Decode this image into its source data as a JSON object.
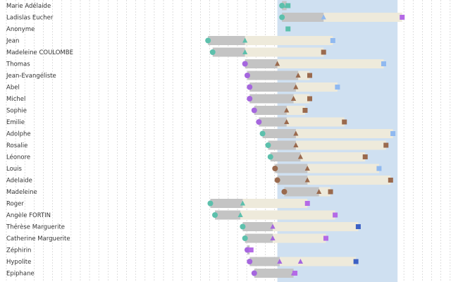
{
  "chart_data": {
    "type": "timeline",
    "x_axis": {
      "units": "relative time index",
      "range": [
        0,
        100
      ],
      "ticks_every": 2,
      "grid": true,
      "tick_labels": "none"
    },
    "highlight_band": {
      "from": 60,
      "to": 86,
      "color": "#cfe0f1"
    },
    "colors": {
      "gray_bar": "#c4c4c4",
      "beige_bar": "#eeeadb",
      "teal": "#5cc0ac",
      "purple": "#a566de",
      "brown": "#9a6a4e",
      "light_blue": "#90b9f0",
      "dark_blue": "#3d61c4",
      "magenta": "#b46ae6",
      "grid": "#d0d0d0"
    },
    "rows": [
      {
        "name": "Marie Adélaide",
        "gray": [
          61,
          62
        ],
        "beige": [
          62,
          62
        ],
        "start_marker": "circle",
        "start_color": "teal",
        "mid_marker": "triangle",
        "mid_color": "teal",
        "end_marker": "square",
        "end_color": "teal",
        "band_top_cut": true
      },
      {
        "name": "Ladislas Eucher",
        "gray": [
          61,
          70
        ],
        "beige": [
          70,
          87
        ],
        "start_marker": "circle",
        "start_color": "teal",
        "mid_marker": "triangle",
        "mid_color": "light_blue",
        "end_marker": "square",
        "end_color": "magenta"
      },
      {
        "name": "Anonyme",
        "gray": [
          62,
          62
        ],
        "beige": [
          62,
          62
        ],
        "start_marker": "",
        "start_color": "",
        "mid_marker": "",
        "mid_color": "",
        "end_marker": "square",
        "end_color": "teal"
      },
      {
        "name": "Jean",
        "gray": [
          45,
          53
        ],
        "beige": [
          53,
          72
        ],
        "start_marker": "circle",
        "start_color": "teal",
        "mid_marker": "triangle",
        "mid_color": "teal",
        "end_marker": "square",
        "end_color": "light_blue"
      },
      {
        "name": "Madeleine COULOMBE",
        "gray": [
          46,
          53
        ],
        "beige": [
          53,
          70
        ],
        "start_marker": "circle",
        "start_color": "teal",
        "mid_marker": "triangle",
        "mid_color": "teal",
        "end_marker": "square",
        "end_color": "brown"
      },
      {
        "name": "Thomas",
        "gray": [
          53,
          60
        ],
        "beige": [
          60,
          83
        ],
        "start_marker": "circle",
        "start_color": "purple",
        "mid_marker": "triangle",
        "mid_color": "brown",
        "end_marker": "square",
        "end_color": "light_blue"
      },
      {
        "name": "Jean-Evangéliste",
        "gray": [
          53.5,
          64.5
        ],
        "beige": [
          64.5,
          67
        ],
        "start_marker": "circle",
        "start_color": "purple",
        "mid_marker": "triangle",
        "mid_color": "brown",
        "end_marker": "square",
        "end_color": "brown"
      },
      {
        "name": "Abel",
        "gray": [
          54,
          64
        ],
        "beige": [
          64,
          73
        ],
        "start_marker": "circle",
        "start_color": "purple",
        "mid_marker": "triangle",
        "mid_color": "brown",
        "end_marker": "square",
        "end_color": "light_blue"
      },
      {
        "name": "Michel",
        "gray": [
          54,
          63.5
        ],
        "beige": [
          63.5,
          67
        ],
        "start_marker": "circle",
        "start_color": "purple",
        "mid_marker": "triangle",
        "mid_color": "brown",
        "end_marker": "square",
        "end_color": "brown"
      },
      {
        "name": "Sophie",
        "gray": [
          55,
          62
        ],
        "beige": [
          62,
          66
        ],
        "start_marker": "circle",
        "start_color": "purple",
        "mid_marker": "triangle",
        "mid_color": "brown",
        "end_marker": "square",
        "end_color": "brown"
      },
      {
        "name": "Emilie",
        "gray": [
          56,
          62
        ],
        "beige": [
          62,
          74.5
        ],
        "start_marker": "circle",
        "start_color": "purple",
        "mid_marker": "triangle",
        "mid_color": "brown",
        "end_marker": "square",
        "end_color": "brown"
      },
      {
        "name": "Adolphe",
        "gray": [
          56.8,
          64
        ],
        "beige": [
          64,
          85
        ],
        "start_marker": "circle",
        "start_color": "teal",
        "mid_marker": "triangle",
        "mid_color": "brown",
        "end_marker": "square",
        "end_color": "light_blue"
      },
      {
        "name": "Rosalie",
        "gray": [
          58,
          64
        ],
        "beige": [
          64,
          83.5
        ],
        "start_marker": "circle",
        "start_color": "teal",
        "mid_marker": "triangle",
        "mid_color": "brown",
        "end_marker": "square",
        "end_color": "brown"
      },
      {
        "name": "Léonore",
        "gray": [
          58.5,
          65
        ],
        "beige": [
          65,
          79
        ],
        "start_marker": "circle",
        "start_color": "teal",
        "mid_marker": "triangle",
        "mid_color": "brown",
        "end_marker": "square",
        "end_color": "brown"
      },
      {
        "name": "Louis",
        "gray": [
          59.5,
          66.5
        ],
        "beige": [
          66.5,
          82
        ],
        "start_marker": "circle",
        "start_color": "brown",
        "mid_marker": "triangle",
        "mid_color": "brown",
        "end_marker": "square",
        "end_color": "light_blue"
      },
      {
        "name": "Adelaide",
        "gray": [
          60,
          66.5
        ],
        "beige": [
          66.5,
          84.5
        ],
        "start_marker": "circle",
        "start_color": "brown",
        "mid_marker": "triangle",
        "mid_color": "brown",
        "end_marker": "square",
        "end_color": "brown"
      },
      {
        "name": "Madeleine",
        "gray": [
          61.5,
          69
        ],
        "beige": [
          69,
          71.5
        ],
        "start_marker": "circle",
        "start_color": "brown",
        "mid_marker": "triangle",
        "mid_color": "brown",
        "end_marker": "square",
        "end_color": "brown"
      },
      {
        "name": "Roger",
        "gray": [
          45.5,
          52.5
        ],
        "beige": [
          52.5,
          66.5
        ],
        "start_marker": "circle",
        "start_color": "teal",
        "mid_marker": "triangle",
        "mid_color": "teal",
        "end_marker": "square",
        "end_color": "magenta"
      },
      {
        "name": "Angèle FORTIN",
        "gray": [
          46.5,
          52
        ],
        "beige": [
          52,
          72.5
        ],
        "start_marker": "circle",
        "start_color": "teal",
        "mid_marker": "triangle",
        "mid_color": "teal",
        "end_marker": "square",
        "end_color": "magenta"
      },
      {
        "name": "Thérèse Marguerite",
        "gray": [
          52.5,
          59
        ],
        "beige": [
          59,
          77.5
        ],
        "start_marker": "circle",
        "start_color": "teal",
        "mid_marker": "triangle",
        "mid_color": "purple",
        "end_marker": "square",
        "end_color": "dark_blue"
      },
      {
        "name": "Catherine Marguerite",
        "gray": [
          53,
          59
        ],
        "beige": [
          59,
          70.5
        ],
        "start_marker": "circle",
        "start_color": "teal",
        "mid_marker": "triangle",
        "mid_color": "purple",
        "end_marker": "square",
        "end_color": "magenta"
      },
      {
        "name": "Zéphirin",
        "gray": [
          53.5,
          54
        ],
        "beige": [
          54,
          54
        ],
        "start_marker": "circle",
        "start_color": "purple",
        "mid_marker": "",
        "mid_color": "",
        "end_marker": "square",
        "end_color": "magenta"
      },
      {
        "name": "Hypolite",
        "gray": [
          54,
          60.5
        ],
        "beige": [
          60.5,
          77
        ],
        "start_marker": "circle",
        "start_color": "purple",
        "mid_marker": "triangle",
        "mid_color": "purple",
        "end_marker": "square",
        "end_color": "dark_blue",
        "extra_marker": "triangle",
        "extra_color": "purple",
        "extra_x": 65
      },
      {
        "name": "Epiphane",
        "gray": [
          55,
          63.5
        ],
        "beige": [
          63.5,
          63.5
        ],
        "start_marker": "circle",
        "start_color": "purple",
        "mid_marker": "triangle",
        "mid_color": "purple",
        "end_marker": "square",
        "end_color": "magenta"
      }
    ]
  }
}
